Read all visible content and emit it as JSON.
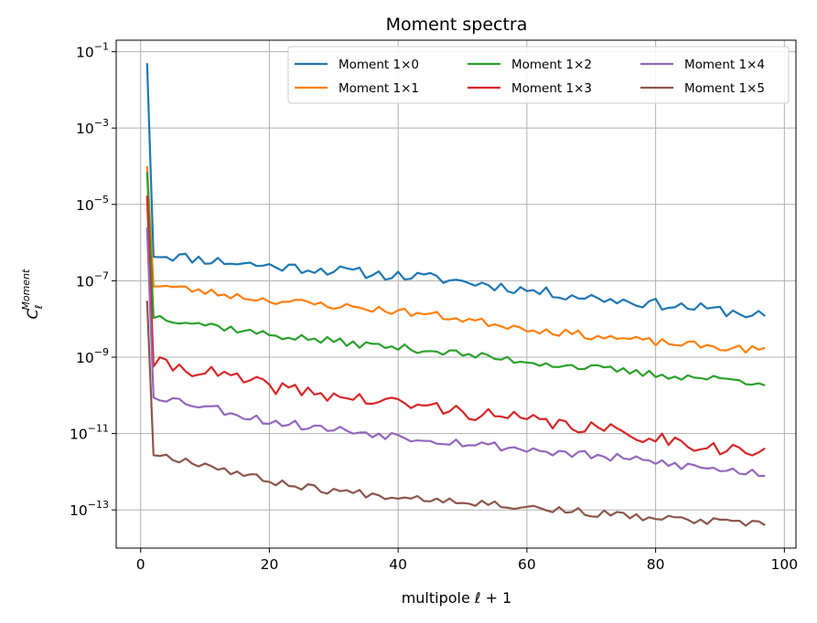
{
  "chart_data": {
    "type": "line",
    "title": "Moment spectra",
    "xlabel": "multipole ℓ + 1",
    "ylabel": "C_ℓ^Moment",
    "xlim": [
      -3.8,
      101.8
    ],
    "ylim": [
      1e-14,
      0.2
    ],
    "yscale": "log",
    "grid": true,
    "legend_position": "top-right",
    "x_ticks": [
      0,
      20,
      40,
      60,
      80,
      100
    ],
    "y_ticks": [
      {
        "value": 1e-13,
        "mantissa": "10",
        "exp": "−13"
      },
      {
        "value": 1e-11,
        "mantissa": "10",
        "exp": "−11"
      },
      {
        "value": 1e-09,
        "mantissa": "10",
        "exp": "−9"
      },
      {
        "value": 1e-07,
        "mantissa": "10",
        "exp": "−7"
      },
      {
        "value": 1e-05,
        "mantissa": "10",
        "exp": "−5"
      },
      {
        "value": 0.001,
        "mantissa": "10",
        "exp": "−3"
      },
      {
        "value": 0.1,
        "mantissa": "10",
        "exp": "−1"
      }
    ],
    "series": [
      {
        "name": "Moment 1×0",
        "color": "#1f77b4",
        "first": 0.05,
        "base": [
          5e-07,
          3.5e-07,
          2.5e-07,
          2e-07,
          1.5e-07,
          1.2e-07,
          8e-08,
          5e-08,
          3.5e-08,
          2.5e-08,
          1.8e-08,
          1.2e-08
        ],
        "amp": 0.14,
        "seed": 11
      },
      {
        "name": "Moment 1×1",
        "color": "#ff7f0e",
        "first": 0.0001,
        "base": [
          8e-08,
          5e-08,
          3.2e-08,
          2.4e-08,
          1.8e-08,
          1.3e-08,
          8e-09,
          5e-09,
          3.5e-09,
          2.5e-09,
          1.9e-09,
          1.5e-09
        ],
        "amp": 0.1,
        "seed": 23
      },
      {
        "name": "Moment 1×2",
        "color": "#2ca02c",
        "first": 7e-05,
        "base": [
          1.2e-08,
          7e-09,
          4e-09,
          2.8e-09,
          2e-09,
          1.5e-09,
          1e-09,
          7e-10,
          5e-10,
          3.5e-10,
          2.8e-10,
          2.2e-10
        ],
        "amp": 0.1,
        "seed": 37
      },
      {
        "name": "Moment 1×3",
        "color": "#d62728",
        "first": 1.7e-05,
        "base": [
          7e-10,
          4e-10,
          1.8e-10,
          1.1e-10,
          7e-11,
          5e-11,
          3e-11,
          2e-11,
          1.3e-11,
          8e-12,
          4.5e-12,
          3e-12
        ],
        "amp": 0.18,
        "seed": 41
      },
      {
        "name": "Moment 1×4",
        "color": "#9467bd",
        "first": 2.5e-06,
        "base": [
          1e-10,
          5e-11,
          2.2e-11,
          1.4e-11,
          1e-11,
          7e-12,
          5e-12,
          3.5e-12,
          2.5e-12,
          1.8e-12,
          1.2e-12,
          9e-13
        ],
        "amp": 0.12,
        "seed": 53
      },
      {
        "name": "Moment 1×5",
        "color": "#8c564b",
        "first": 3e-08,
        "base": [
          3e-12,
          1.5e-12,
          6e-13,
          3.5e-13,
          2.5e-13,
          2e-13,
          1.5e-13,
          1.1e-13,
          8e-14,
          6e-14,
          5e-14,
          4e-14
        ],
        "amp": 0.1,
        "seed": 67
      }
    ]
  }
}
